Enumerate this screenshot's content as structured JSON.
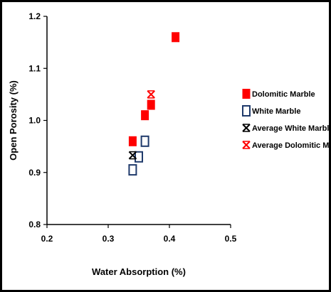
{
  "chart_data": {
    "type": "scatter",
    "title": "",
    "xlabel": "Water Absorption (%)",
    "ylabel": "Open Porosity (%)",
    "xlim": [
      0.2,
      0.5
    ],
    "ylim": [
      0.8,
      1.2
    ],
    "xticks": [
      "0.2",
      "0.3",
      "0.4",
      "0.5"
    ],
    "yticks": [
      "0.8",
      "0.9",
      "1.0",
      "1.1",
      "1.2"
    ],
    "grid": false,
    "legend_position": "right",
    "series": [
      {
        "name": "Dolomitic Marble",
        "marker": "filled-square",
        "color": "#ff0000",
        "points": [
          {
            "x": 0.34,
            "y": 0.96
          },
          {
            "x": 0.36,
            "y": 1.01
          },
          {
            "x": 0.37,
            "y": 1.03
          },
          {
            "x": 0.41,
            "y": 1.16
          }
        ]
      },
      {
        "name": "White Marble",
        "marker": "open-square",
        "color": "#1f3a6b",
        "points": [
          {
            "x": 0.34,
            "y": 0.905
          },
          {
            "x": 0.35,
            "y": 0.93
          },
          {
            "x": 0.36,
            "y": 0.96
          }
        ]
      },
      {
        "name": "Average White Marble",
        "marker": "asterisk",
        "color": "#000000",
        "points": [
          {
            "x": 0.34,
            "y": 0.933
          }
        ]
      },
      {
        "name": "Average Dolomitic Marble",
        "marker": "asterisk",
        "color": "#ff0000",
        "points": [
          {
            "x": 0.37,
            "y": 1.05
          }
        ]
      }
    ]
  }
}
